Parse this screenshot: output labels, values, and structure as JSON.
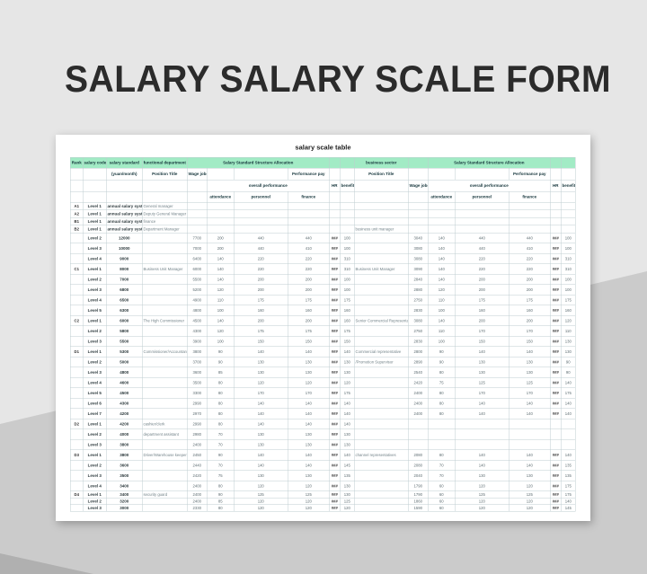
{
  "page_title": "SALARY SALARY SCALE FORM",
  "colors": {
    "bg-light": "#e6e6e6",
    "bg-dark": "#cbcbcb",
    "bg-darker": "#b0b0b0",
    "header-green": "#a2ebc5",
    "grid": "#bfcdd0",
    "ink-title": "#2b2b2b"
  },
  "sheet": {
    "title": "salary scale table",
    "header": {
      "rank": "Rank",
      "salary_code": "salary code",
      "salary_standard": "salary standard",
      "functional_department": "functional department",
      "yuan_month": "(yuan/month)",
      "position_title": "Position Title",
      "wage_jobs": "Wage jobs",
      "structure_allocation": "Salary Standard Structure Allocation",
      "business_sector": "business sector",
      "performance_pay": "Performance pay",
      "overall_performance": "overall performance",
      "attendance": "attendance",
      "personnel": "personnel",
      "finance": "finance",
      "hr": "HR",
      "benefit": "benefit"
    },
    "rows": [
      [
        "A1",
        "Level 1",
        "annual salary system",
        "General manager",
        "",
        "",
        "",
        "",
        "",
        "",
        "",
        "",
        "",
        "",
        "",
        "",
        ""
      ],
      [
        "A2",
        "Level 1",
        "annual salary system",
        "Deputy General Manager",
        "",
        "",
        "",
        "",
        "",
        "",
        "",
        "",
        "",
        "",
        "",
        "",
        ""
      ],
      [
        "B1",
        "Level 1",
        "annual salary system",
        "finance",
        "",
        "",
        "",
        "",
        "",
        "",
        "",
        "",
        "",
        "",
        "",
        "",
        ""
      ],
      [
        "B2",
        "Level 1",
        "annual salary system",
        "Department Manager",
        "",
        "",
        "",
        "",
        "",
        "",
        "business unit manager",
        "",
        "",
        "",
        "",
        "",
        ""
      ],
      [
        "",
        "Level 2",
        "12000",
        "",
        "7700",
        "200",
        "440",
        "440",
        "###",
        "100",
        "",
        "3040",
        "140",
        "440",
        "440",
        "###",
        "100"
      ],
      [
        "",
        "Level 3",
        "10000",
        "",
        "7000",
        "200",
        "440",
        "410",
        "###",
        "100",
        "",
        "3080",
        "140",
        "440",
        "410",
        "###",
        "100"
      ],
      [
        "",
        "Level 4",
        "9000",
        "",
        "6400",
        "140",
        "220",
        "220",
        "###",
        "310",
        "",
        "3080",
        "140",
        "220",
        "220",
        "###",
        "310"
      ],
      [
        "C1",
        "Level 1",
        "8000",
        "Business Unit Manager",
        "6000",
        "140",
        "220",
        "220",
        "###",
        "310",
        "Business Unit Manager",
        "3090",
        "140",
        "220",
        "220",
        "###",
        "310"
      ],
      [
        "",
        "Level 2",
        "7000",
        "",
        "5500",
        "140",
        "200",
        "200",
        "###",
        "100",
        "",
        "2840",
        "140",
        "200",
        "200",
        "###",
        "100"
      ],
      [
        "",
        "Level 3",
        "6800",
        "",
        "5200",
        "120",
        "200",
        "200",
        "###",
        "100",
        "",
        "2880",
        "120",
        "200",
        "200",
        "###",
        "100"
      ],
      [
        "",
        "Level 4",
        "6500",
        "",
        "4900",
        "110",
        "175",
        "175",
        "###",
        "175",
        "",
        "2750",
        "110",
        "175",
        "175",
        "###",
        "175"
      ],
      [
        "",
        "Level 5",
        "6300",
        "",
        "4800",
        "100",
        "160",
        "160",
        "###",
        "160",
        "",
        "2830",
        "100",
        "160",
        "160",
        "###",
        "160"
      ],
      [
        "C2",
        "Level 1",
        "6000",
        "The High Commissioner",
        "4500",
        "140",
        "200",
        "200",
        "###",
        "160",
        "Senior Commercial Representative",
        "3080",
        "140",
        "200",
        "200",
        "###",
        "120"
      ],
      [
        "",
        "Level 2",
        "5800",
        "",
        "4300",
        "120",
        "175",
        "175",
        "###",
        "175",
        "",
        "2750",
        "110",
        "170",
        "170",
        "###",
        "110"
      ],
      [
        "",
        "Level 3",
        "5500",
        "",
        "3900",
        "100",
        "150",
        "150",
        "###",
        "150",
        "",
        "2830",
        "100",
        "150",
        "150",
        "###",
        "130"
      ],
      [
        "D1",
        "Level 1",
        "5300",
        "Commissioner/Accountant",
        "3800",
        "90",
        "140",
        "140",
        "###",
        "140",
        "Commercial representative",
        "2800",
        "90",
        "140",
        "140",
        "###",
        "130"
      ],
      [
        "",
        "Level 2",
        "5000",
        "",
        "3700",
        "90",
        "130",
        "130",
        "###",
        "130",
        "/Promotion Supervisor",
        "2890",
        "90",
        "130",
        "130",
        "###",
        "90"
      ],
      [
        "",
        "Level 3",
        "4800",
        "",
        "3600",
        "85",
        "130",
        "130",
        "###",
        "130",
        "",
        "2540",
        "80",
        "130",
        "130",
        "###",
        "90"
      ],
      [
        "",
        "Level 4",
        "4600",
        "",
        "3500",
        "80",
        "120",
        "120",
        "###",
        "120",
        "",
        "2420",
        "75",
        "125",
        "125",
        "###",
        "140"
      ],
      [
        "",
        "Level 5",
        "4500",
        "",
        "3300",
        "80",
        "170",
        "170",
        "###",
        "175",
        "",
        "2400",
        "80",
        "170",
        "170",
        "###",
        "175"
      ],
      [
        "",
        "Level 6",
        "4300",
        "",
        "2990",
        "80",
        "140",
        "140",
        "###",
        "140",
        "",
        "2400",
        "80",
        "140",
        "140",
        "###",
        "140"
      ],
      [
        "",
        "Level 7",
        "4200",
        "",
        "2970",
        "80",
        "140",
        "140",
        "###",
        "140",
        "",
        "2400",
        "80",
        "140",
        "140",
        "###",
        "140"
      ],
      [
        "D2",
        "Level 1",
        "4200",
        "cashier/clerk",
        "2990",
        "80",
        "140",
        "140",
        "###",
        "140",
        "",
        "",
        "",
        "",
        "",
        "",
        ""
      ],
      [
        "",
        "Level 2",
        "4000",
        "department assistant",
        "2980",
        "70",
        "130",
        "130",
        "###",
        "130",
        "",
        "",
        "",
        "",
        "",
        "",
        ""
      ],
      [
        "",
        "Level 3",
        "3800",
        "",
        "2400",
        "70",
        "130",
        "130",
        "###",
        "130",
        "",
        "",
        "",
        "",
        "",
        "",
        ""
      ],
      [
        "D3",
        "Level 1",
        "3800",
        "Driver/Warehouse keeper",
        "2450",
        "90",
        "140",
        "140",
        "###",
        "140",
        "channel representatives",
        "2080",
        "80",
        "140",
        "140",
        "###",
        "140"
      ],
      [
        "",
        "Level 2",
        "3600",
        "",
        "2440",
        "70",
        "140",
        "140",
        "###",
        "145",
        "",
        "2080",
        "70",
        "140",
        "140",
        "###",
        "135"
      ],
      [
        "",
        "Level 3",
        "3500",
        "",
        "2420",
        "75",
        "130",
        "130",
        "###",
        "135",
        "",
        "2040",
        "70",
        "130",
        "130",
        "###",
        "135"
      ],
      [
        "",
        "Level 4",
        "3400",
        "",
        "2400",
        "80",
        "120",
        "120",
        "###",
        "130",
        "",
        "1790",
        "60",
        "120",
        "120",
        "###",
        "175"
      ],
      [
        "D4",
        "Level 1",
        "3400",
        "security guard",
        "2400",
        "90",
        "125",
        "125",
        "###",
        "130",
        "",
        "1790",
        "60",
        "125",
        "125",
        "###",
        "175"
      ],
      [
        "",
        "Level 2",
        "3200",
        "",
        "2400",
        "85",
        "120",
        "120",
        "###",
        "125",
        "",
        "1860",
        "60",
        "120",
        "120",
        "###",
        "140"
      ],
      [
        "",
        "Level 3",
        "3000",
        "",
        "2330",
        "80",
        "120",
        "120",
        "###",
        "120",
        "",
        "1590",
        "60",
        "120",
        "120",
        "###",
        "145"
      ]
    ]
  }
}
